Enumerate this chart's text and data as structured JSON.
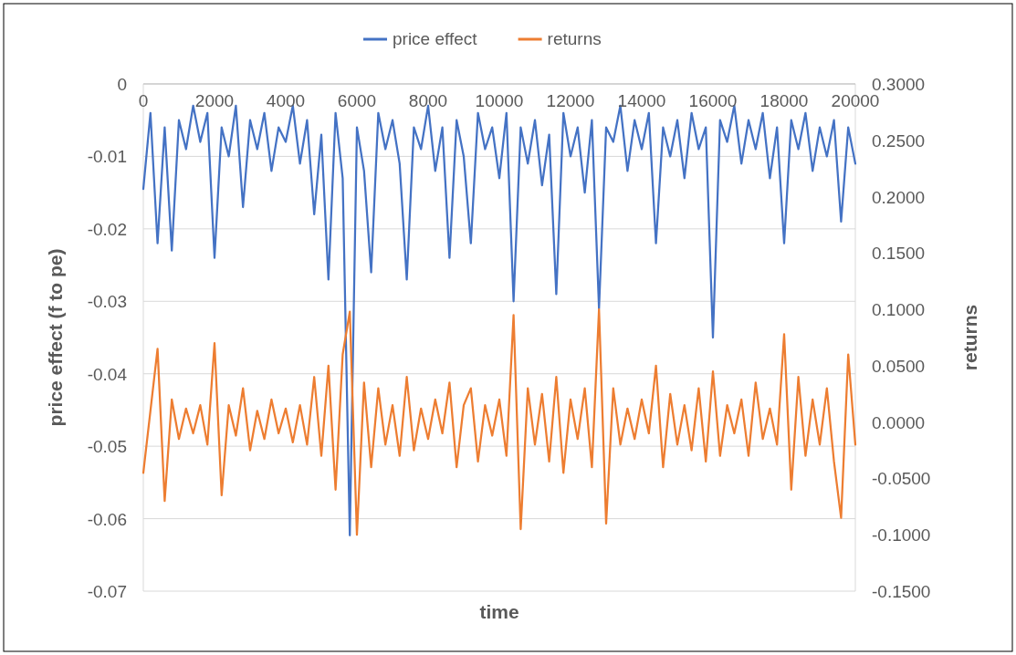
{
  "chart_data": {
    "type": "line",
    "xlabel": "time",
    "ylabel": "price effect (f to pe)",
    "y2label": "returns",
    "legend": "top",
    "grid": "y",
    "marker": "none",
    "line_style": "solid",
    "x": [
      0,
      200,
      400,
      600,
      800,
      1000,
      1200,
      1400,
      1600,
      1800,
      2000,
      2200,
      2400,
      2600,
      2800,
      3000,
      3200,
      3400,
      3600,
      3800,
      4000,
      4200,
      4400,
      4600,
      4800,
      5000,
      5200,
      5400,
      5600,
      5800,
      6000,
      6200,
      6400,
      6600,
      6800,
      7000,
      7200,
      7400,
      7600,
      7800,
      8000,
      8200,
      8400,
      8600,
      8800,
      9000,
      9200,
      9400,
      9600,
      9800,
      10000,
      10200,
      10400,
      10600,
      10800,
      11000,
      11200,
      11400,
      11600,
      11800,
      12000,
      12200,
      12400,
      12600,
      12800,
      13000,
      13200,
      13400,
      13600,
      13800,
      14000,
      14200,
      14400,
      14600,
      14800,
      15000,
      15200,
      15400,
      15600,
      15800,
      16000,
      16200,
      16400,
      16600,
      16800,
      17000,
      17200,
      17400,
      17600,
      17800,
      18000,
      18200,
      18400,
      18600,
      18800,
      19000,
      19200,
      19400,
      19600,
      19800,
      20000
    ],
    "xlim": [
      0,
      20000
    ],
    "xticks": [
      0,
      2000,
      4000,
      6000,
      8000,
      10000,
      12000,
      14000,
      16000,
      18000,
      20000
    ],
    "ylim": [
      -0.07,
      0
    ],
    "yticks": [
      0,
      -0.01,
      -0.02,
      -0.03,
      -0.04,
      -0.05,
      -0.06,
      -0.07
    ],
    "y2lim": [
      -0.15,
      0.3
    ],
    "y2ticks": [
      {
        "value": 0.3,
        "label": "0.3000"
      },
      {
        "value": 0.25,
        "label": "0.2500"
      },
      {
        "value": 0.2,
        "label": "0.2000"
      },
      {
        "value": 0.15,
        "label": "0.1500"
      },
      {
        "value": 0.1,
        "label": "0.1000"
      },
      {
        "value": 0.05,
        "label": "0.0500"
      },
      {
        "value": 0,
        "label": "0.0000"
      },
      {
        "value": -0.05,
        "label": "-0.0500"
      },
      {
        "value": -0.1,
        "label": "-0.1000"
      },
      {
        "value": -0.15,
        "label": "-0.1500"
      }
    ],
    "series": [
      {
        "name": "price effect",
        "color": "#4472c4",
        "values": [
          -0.0145,
          -0.004,
          -0.022,
          -0.006,
          -0.023,
          -0.005,
          -0.009,
          -0.003,
          -0.008,
          -0.004,
          -0.024,
          -0.006,
          -0.01,
          -0.003,
          -0.017,
          -0.005,
          -0.009,
          -0.004,
          -0.012,
          -0.006,
          -0.008,
          -0.003,
          -0.011,
          -0.005,
          -0.018,
          -0.007,
          -0.027,
          -0.004,
          -0.013,
          -0.0623,
          -0.006,
          -0.012,
          -0.026,
          -0.004,
          -0.009,
          -0.005,
          -0.011,
          -0.027,
          -0.006,
          -0.009,
          -0.003,
          -0.012,
          -0.006,
          -0.024,
          -0.005,
          -0.01,
          -0.022,
          -0.004,
          -0.009,
          -0.006,
          -0.013,
          -0.004,
          -0.03,
          -0.006,
          -0.011,
          -0.005,
          -0.014,
          -0.007,
          -0.029,
          -0.004,
          -0.01,
          -0.006,
          -0.015,
          -0.005,
          -0.031,
          -0.006,
          -0.008,
          -0.003,
          -0.012,
          -0.005,
          -0.009,
          -0.004,
          -0.022,
          -0.006,
          -0.01,
          -0.005,
          -0.013,
          -0.004,
          -0.009,
          -0.006,
          -0.035,
          -0.005,
          -0.008,
          -0.003,
          -0.011,
          -0.005,
          -0.009,
          -0.004,
          -0.013,
          -0.006,
          -0.022,
          -0.005,
          -0.009,
          -0.004,
          -0.012,
          -0.006,
          -0.01,
          -0.005,
          -0.019,
          -0.006,
          -0.011
        ]
      },
      {
        "name": "returns",
        "color": "#ed7d31",
        "axis": "y2",
        "values": [
          -0.045,
          0.01,
          0.065,
          -0.07,
          0.02,
          -0.015,
          0.012,
          -0.01,
          0.015,
          -0.02,
          0.07,
          -0.065,
          0.015,
          -0.012,
          0.03,
          -0.025,
          0.01,
          -0.015,
          0.02,
          -0.01,
          0.012,
          -0.018,
          0.015,
          -0.02,
          0.04,
          -0.03,
          0.05,
          -0.06,
          0.06,
          0.098,
          -0.1,
          0.035,
          -0.04,
          0.03,
          -0.02,
          0.015,
          -0.03,
          0.04,
          -0.025,
          0.012,
          -0.015,
          0.02,
          -0.01,
          0.035,
          -0.04,
          0.015,
          0.03,
          -0.035,
          0.015,
          -0.012,
          0.02,
          -0.03,
          0.095,
          -0.095,
          0.03,
          -0.02,
          0.025,
          -0.035,
          0.04,
          -0.045,
          0.02,
          -0.015,
          0.03,
          -0.04,
          0.1,
          -0.09,
          0.03,
          -0.02,
          0.012,
          -0.015,
          0.02,
          -0.01,
          0.05,
          -0.04,
          0.025,
          -0.02,
          0.015,
          -0.025,
          0.03,
          -0.035,
          0.045,
          -0.03,
          0.015,
          -0.01,
          0.02,
          -0.03,
          0.035,
          -0.015,
          0.012,
          -0.02,
          0.078,
          -0.06,
          0.04,
          -0.03,
          0.02,
          -0.02,
          0.03,
          -0.035,
          -0.085,
          0.06,
          -0.02
        ]
      }
    ]
  }
}
